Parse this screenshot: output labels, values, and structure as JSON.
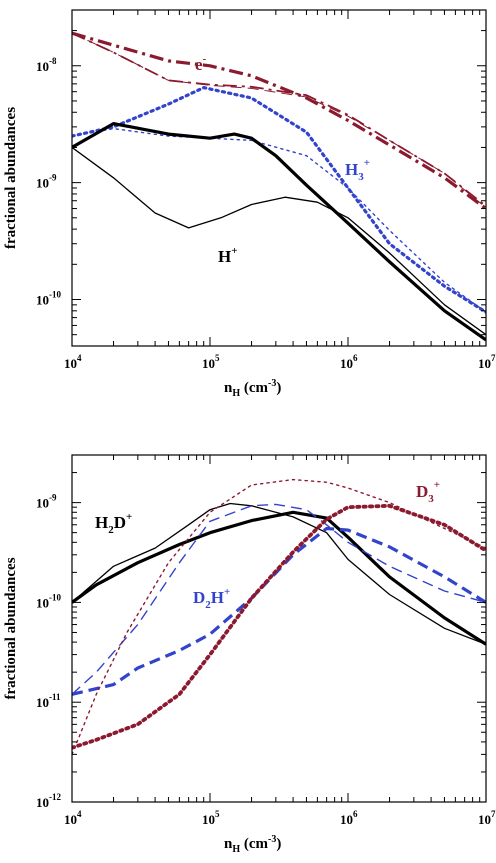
{
  "chart_data": [
    {
      "type": "line",
      "panel": "top",
      "xlabel": "n_H (cm^-3)",
      "ylabel": "fractional abundances",
      "xscale": "log",
      "yscale": "log",
      "xlim": [
        10000,
        10000000
      ],
      "ylim": [
        4e-11,
        3e-08
      ],
      "xticks": [
        {
          "label": "10",
          "exp": "4"
        },
        {
          "label": "10",
          "exp": "5"
        },
        {
          "label": "10",
          "exp": "6"
        },
        {
          "label": "10",
          "exp": "7"
        }
      ],
      "yticks": [
        {
          "label": "10",
          "exp": "-8"
        },
        {
          "label": "10",
          "exp": "-9"
        },
        {
          "label": "10",
          "exp": "-10"
        }
      ],
      "annotations": [
        {
          "base": "e",
          "sup": "-",
          "color": "#8b1a2f"
        },
        {
          "base": "H",
          "sub": "3",
          "sup": "+",
          "color": "#3344cc"
        },
        {
          "base": "H",
          "sup": "+",
          "color": "#000000"
        }
      ],
      "series": [
        {
          "color": "#8b1a2f",
          "style": "dashdot",
          "width": 3.2,
          "x": [
            10000,
            20000,
            50000,
            100000,
            200000,
            500000,
            1000000,
            2000000,
            5000000,
            10000000
          ],
          "y": [
            1.9e-08,
            1.5e-08,
            1.1e-08,
            1e-08,
            8.2e-09,
            5.3e-09,
            3.4e-09,
            2.1e-09,
            1.1e-09,
            6e-10
          ]
        },
        {
          "color": "#8b1a2f",
          "style": "dashdot",
          "width": 1.8,
          "x": [
            10000,
            20000,
            50000,
            100000,
            200000,
            500000,
            1000000,
            2000000,
            5000000,
            10000000
          ],
          "y": [
            1.9e-08,
            1.3e-08,
            7.5e-09,
            6.9e-09,
            6.6e-09,
            5.6e-09,
            3.8e-09,
            2.3e-09,
            1.2e-09,
            6.3e-10
          ]
        },
        {
          "color": "#8b1a2f",
          "style": "dashed",
          "width": 1.0,
          "x": [
            10000,
            20000,
            50000,
            100000,
            200000,
            500000,
            1000000,
            2000000,
            5000000,
            10000000
          ],
          "y": [
            1.9e-08,
            1.3e-08,
            7.5e-09,
            6.8e-09,
            6.4e-09,
            5.4e-09,
            3.7e-09,
            2.3e-09,
            1.2e-09,
            6.1e-10
          ]
        },
        {
          "color": "#3344cc",
          "style": "dotted",
          "width": 3.2,
          "x": [
            10000,
            20000,
            50000,
            90000,
            200000,
            500000,
            1000000,
            2000000,
            5000000,
            10000000
          ],
          "y": [
            2.5e-09,
            3e-09,
            4.7e-09,
            6.5e-09,
            5.3e-09,
            2.7e-09,
            9e-10,
            3e-10,
            1.3e-10,
            7.8e-11
          ]
        },
        {
          "color": "#3344cc",
          "style": "dotted",
          "width": 1.4,
          "x": [
            10000,
            20000,
            50000,
            100000,
            200000,
            500000,
            1000000,
            2000000,
            5000000,
            10000000
          ],
          "y": [
            2.5e-09,
            2.9e-09,
            2.5e-09,
            2.4e-09,
            2.3e-09,
            1.7e-09,
            9e-10,
            3.9e-10,
            1.4e-10,
            7.8e-11
          ]
        },
        {
          "color": "#000000",
          "style": "solid",
          "width": 3.2,
          "x": [
            10000,
            20000,
            50000,
            100000,
            150000,
            200000,
            300000,
            500000,
            1000000,
            2000000,
            5000000,
            10000000
          ],
          "y": [
            2e-09,
            3.2e-09,
            2.6e-09,
            2.4e-09,
            2.6e-09,
            2.4e-09,
            1.7e-09,
            9.5e-10,
            4.5e-10,
            2.1e-10,
            8e-11,
            4.5e-11
          ]
        },
        {
          "color": "#000000",
          "style": "solid",
          "width": 1.3,
          "x": [
            10000,
            20000,
            40000,
            70000,
            120000,
            200000,
            350000,
            600000,
            1000000,
            2000000,
            5000000,
            10000000
          ],
          "y": [
            2e-09,
            1.1e-09,
            5.5e-10,
            4.1e-10,
            5e-10,
            6.5e-10,
            7.5e-10,
            6.8e-10,
            5e-10,
            2.5e-10,
            9e-11,
            5e-11
          ]
        }
      ]
    },
    {
      "type": "line",
      "panel": "bottom",
      "xlabel": "n_H (cm^-3)",
      "ylabel": "fractional abundances",
      "xscale": "log",
      "yscale": "log",
      "xlim": [
        10000,
        10000000
      ],
      "ylim": [
        1e-12,
        3e-09
      ],
      "xticks": [
        {
          "label": "10",
          "exp": "4"
        },
        {
          "label": "10",
          "exp": "5"
        },
        {
          "label": "10",
          "exp": "6"
        },
        {
          "label": "10",
          "exp": "7"
        }
      ],
      "yticks": [
        {
          "label": "10",
          "exp": "-9"
        },
        {
          "label": "10",
          "exp": "-10"
        },
        {
          "label": "10",
          "exp": "-11"
        },
        {
          "label": "10",
          "exp": "-12"
        }
      ],
      "annotations": [
        {
          "base": "H",
          "sub": "2",
          "mid": "D",
          "sup": "+",
          "color": "#000000"
        },
        {
          "base": "D",
          "sub": "2",
          "mid": "H",
          "sup": "+",
          "color": "#3344cc"
        },
        {
          "base": "D",
          "sub": "3",
          "sup": "+",
          "color": "#8b1a2f"
        }
      ],
      "series": [
        {
          "color": "#000000",
          "style": "solid",
          "width": 3.2,
          "x": [
            10000,
            15000,
            30000,
            60000,
            100000,
            200000,
            400000,
            700000,
            1000000,
            2000000,
            5000000,
            10000000
          ],
          "y": [
            1e-10,
            1.5e-10,
            2.5e-10,
            3.8e-10,
            5e-10,
            6.6e-10,
            8e-10,
            7e-10,
            4.5e-10,
            1.8e-10,
            7e-11,
            3.8e-11
          ]
        },
        {
          "color": "#000000",
          "style": "solid",
          "width": 1.3,
          "x": [
            10000,
            20000,
            40000,
            70000,
            100000,
            140000,
            200000,
            400000,
            700000,
            1000000,
            2000000,
            5000000,
            10000000
          ],
          "y": [
            1e-10,
            2.3e-10,
            3.5e-10,
            6e-10,
            8.5e-10,
            9.8e-10,
            9.3e-10,
            7.2e-10,
            5e-10,
            2.7e-10,
            1.2e-10,
            5.5e-11,
            3.8e-11
          ]
        },
        {
          "color": "#3344cc",
          "style": "dashed",
          "width": 3.2,
          "x": [
            10000,
            20000,
            30000,
            60000,
            100000,
            200000,
            400000,
            700000,
            1000000,
            2000000,
            5000000,
            10000000
          ],
          "y": [
            1.2e-11,
            1.5e-11,
            2.2e-11,
            3.3e-11,
            4.8e-11,
            1.1e-10,
            3e-10,
            5.5e-10,
            5.3e-10,
            3.6e-10,
            1.8e-10,
            1e-10
          ]
        },
        {
          "color": "#3344cc",
          "style": "dashed",
          "width": 1.4,
          "x": [
            10000,
            15000,
            30000,
            60000,
            100000,
            200000,
            300000,
            500000,
            700000,
            1000000,
            2000000,
            5000000,
            10000000
          ],
          "y": [
            1.2e-11,
            2e-11,
            6e-11,
            2.5e-10,
            6.5e-10,
            9.3e-10,
            9.6e-10,
            8.5e-10,
            6e-10,
            4e-10,
            2.3e-10,
            1.3e-10,
            1e-10
          ]
        },
        {
          "color": "#8b1a2f",
          "style": "dotted",
          "width": 3.8,
          "x": [
            10000,
            15000,
            30000,
            60000,
            100000,
            200000,
            400000,
            700000,
            1000000,
            2000000,
            5000000,
            10000000
          ],
          "y": [
            3.5e-12,
            4.2e-12,
            6e-12,
            1.2e-11,
            3e-11,
            1.1e-10,
            3.2e-10,
            6.8e-10,
            9e-10,
            9.3e-10,
            6e-10,
            3.3e-10
          ]
        },
        {
          "color": "#8b1a2f",
          "style": "dotted",
          "width": 1.4,
          "x": [
            10000,
            15000,
            25000,
            50000,
            100000,
            200000,
            400000,
            700000,
            1000000,
            2000000,
            5000000,
            10000000
          ],
          "y": [
            3e-12,
            1.2e-11,
            5e-11,
            2.5e-10,
            8e-10,
            1.5e-09,
            1.7e-09,
            1.6e-09,
            1.4e-09,
            1e-09,
            5.5e-10,
            3.5e-10
          ]
        }
      ]
    }
  ]
}
